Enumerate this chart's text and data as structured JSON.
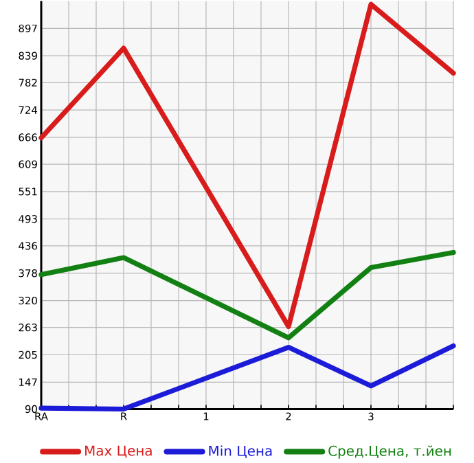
{
  "chart_data": {
    "type": "line",
    "categories": [
      "RA",
      "R",
      "1",
      "2",
      "3",
      null
    ],
    "series": [
      {
        "name": "Max Цена",
        "color": "#d81c1c",
        "values": [
          665,
          855,
          null,
          265,
          948,
          802
        ]
      },
      {
        "name": "Min Цена",
        "color": "#1c1cd8",
        "values": [
          92,
          90,
          null,
          221,
          139,
          224
        ]
      },
      {
        "name": "Сред.Цена, т.йен",
        "color": "#128012",
        "values": [
          375,
          411,
          null,
          241,
          390,
          422
        ]
      }
    ],
    "ylim": [
      90,
      955
    ],
    "yticks": [
      90,
      147,
      205,
      263,
      320,
      378,
      436,
      493,
      551,
      609,
      666,
      724,
      782,
      839,
      897
    ],
    "grid": true,
    "legend": "bottom",
    "marker": "none",
    "line_style": "solid"
  }
}
